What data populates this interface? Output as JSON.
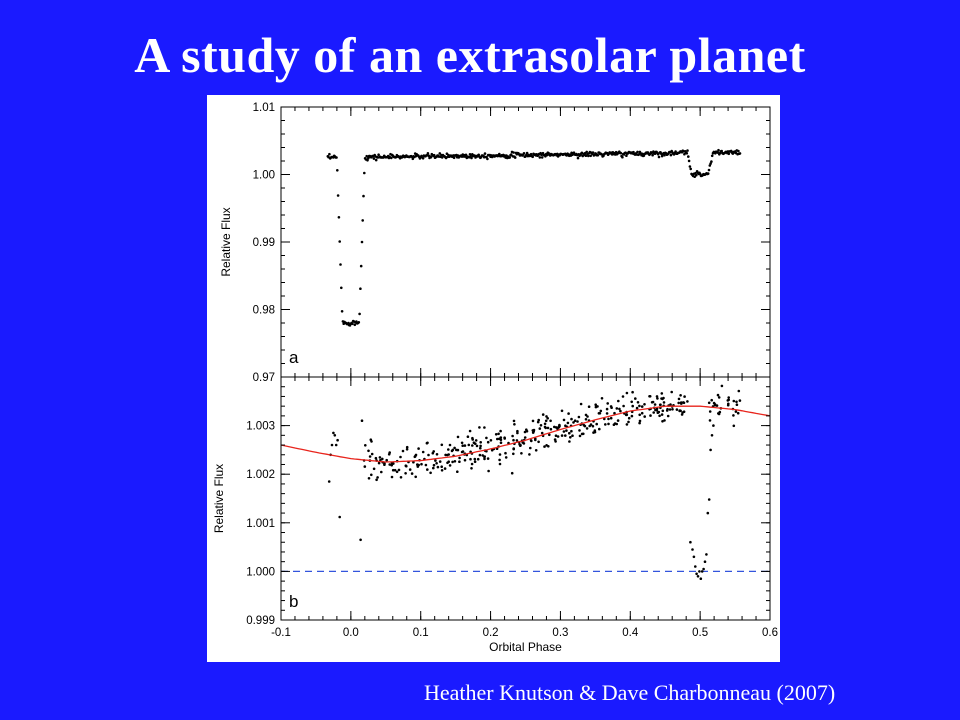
{
  "slide": {
    "title": "A study of an extrasolar planet",
    "credit": "Heather Knutson & Dave Charbonneau (2007)",
    "background_color": "#1a1aff",
    "title_color": "#ffffff"
  },
  "chart_data": [
    {
      "panel": "a",
      "type": "scatter",
      "title": "",
      "panel_label": "a",
      "xlabel": "",
      "ylabel": "Relative Flux",
      "xlim": [
        -0.1,
        0.6
      ],
      "ylim": [
        0.97,
        1.01
      ],
      "yticks": [
        0.97,
        0.98,
        0.99,
        1.0,
        1.01
      ],
      "ytick_labels": [
        "0.97",
        "0.98",
        "0.99",
        "1.00",
        "1.01"
      ],
      "grid": false,
      "point_color": "#000000",
      "model": {
        "baseline_start": {
          "x": -0.033,
          "y": 1.0025
        },
        "baseline_end": {
          "x": 0.557,
          "y": 1.0033
        },
        "transit": {
          "center": 0.0,
          "half_width": 0.02,
          "ingress": 0.008,
          "depth": 0.0245
        },
        "secondary_eclipse": {
          "center": 0.5,
          "half_width": 0.018,
          "ingress": 0.006,
          "flux": 1.0001
        },
        "scatter": 0.00018,
        "x_start": -0.033,
        "x_end": 0.557,
        "n_points": 520
      }
    },
    {
      "panel": "b",
      "type": "scatter",
      "title": "",
      "panel_label": "b",
      "xlabel": "Orbital Phase",
      "ylabel": "Relative Flux",
      "xlim": [
        -0.1,
        0.6
      ],
      "ylim": [
        0.999,
        1.004
      ],
      "xticks": [
        -0.1,
        0.0,
        0.1,
        0.2,
        0.3,
        0.4,
        0.5,
        0.6
      ],
      "xtick_labels": [
        "-0.1",
        "0.0",
        "0.1",
        "0.2",
        "0.3",
        "0.4",
        "0.5",
        "0.6"
      ],
      "yticks": [
        0.999,
        1.0,
        1.001,
        1.002,
        1.003
      ],
      "ytick_labels": [
        "0.999",
        "1.000",
        "1.001",
        "1.002",
        "1.003"
      ],
      "grid": false,
      "point_color": "#000000",
      "fit_curve": {
        "color": "#e8241c",
        "points": [
          [
            -0.1,
            1.0026
          ],
          [
            -0.05,
            1.00245
          ],
          [
            0.0,
            1.00232
          ],
          [
            0.05,
            1.00225
          ],
          [
            0.1,
            1.00228
          ],
          [
            0.15,
            1.00237
          ],
          [
            0.2,
            1.00252
          ],
          [
            0.25,
            1.0027
          ],
          [
            0.3,
            1.00292
          ],
          [
            0.35,
            1.00312
          ],
          [
            0.4,
            1.0033
          ],
          [
            0.45,
            1.0034
          ],
          [
            0.5,
            1.0034
          ],
          [
            0.55,
            1.00333
          ],
          [
            0.6,
            1.0032
          ]
        ]
      },
      "reference_line": {
        "y": 1.0,
        "style": "dashed",
        "color": "#3355dd"
      },
      "visible_points": [
        [
          -0.031,
          1.00185
        ],
        [
          -0.029,
          1.0024
        ],
        [
          -0.027,
          1.0026
        ],
        [
          -0.025,
          1.00285
        ],
        [
          -0.023,
          1.0028
        ],
        [
          -0.021,
          1.0026
        ],
        [
          -0.019,
          1.0027
        ],
        [
          -0.016,
          1.00112
        ],
        [
          0.014,
          1.00065
        ],
        [
          0.016,
          1.0031
        ],
        [
          0.486,
          1.0006
        ],
        [
          0.489,
          1.00045
        ],
        [
          0.491,
          1.0003
        ],
        [
          0.493,
          1.0001
        ],
        [
          0.495,
          0.99995
        ],
        [
          0.497,
          0.9999
        ],
        [
          0.499,
          1.0
        ],
        [
          0.501,
          0.99985
        ],
        [
          0.503,
          1.0
        ],
        [
          0.505,
          1.00005
        ],
        [
          0.507,
          1.0002
        ],
        [
          0.509,
          1.00035
        ],
        [
          0.511,
          1.0012
        ],
        [
          0.513,
          1.00148
        ],
        [
          0.515,
          1.0025
        ],
        [
          0.517,
          1.0028
        ],
        [
          0.519,
          1.003
        ]
      ],
      "out_of_eclipse": {
        "x_start": 0.018,
        "x_end": 0.557,
        "exclude": [
          0.483,
          0.513
        ],
        "scatter": 0.00018,
        "n_points": 440
      }
    }
  ]
}
